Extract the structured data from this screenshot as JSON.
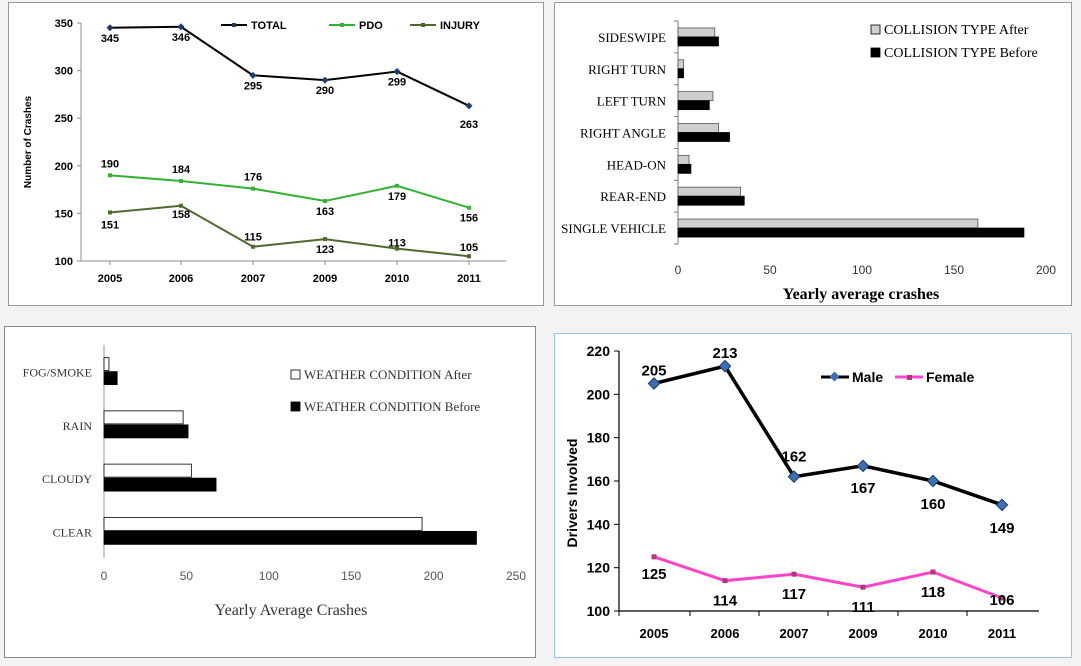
{
  "chart_data": [
    {
      "type": "line",
      "categories": [
        "2005",
        "2006",
        "2007",
        "2009",
        "2010",
        "2011"
      ],
      "series": [
        {
          "name": "TOTAL",
          "color": "#000000",
          "values": [
            345,
            346,
            295,
            290,
            299,
            263
          ]
        },
        {
          "name": "PDO",
          "color": "#33b233",
          "values": [
            190,
            184,
            176,
            163,
            179,
            156
          ]
        },
        {
          "name": "INJURY",
          "color": "#4e6b2e",
          "values": [
            151,
            158,
            115,
            123,
            113,
            105
          ]
        }
      ],
      "ylabel": "Number of Crashes",
      "ylim": [
        100,
        350
      ],
      "yticks": [
        100,
        150,
        200,
        250,
        300,
        350
      ],
      "legend": "top",
      "grid": false
    },
    {
      "type": "bar",
      "orientation": "horizontal",
      "categories": [
        "SIDESWIPE",
        "RIGHT TURN",
        "LEFT TURN",
        "RIGHT ANGLE",
        "HEAD-ON",
        "REAR-END",
        "SINGLE VEHICLE"
      ],
      "series": [
        {
          "name": "COLLISION TYPE After",
          "color": "#cfcfcf",
          "values": [
            20,
            3,
            19,
            22,
            6,
            34,
            163
          ]
        },
        {
          "name": "COLLISION TYPE Before",
          "color": "#000000",
          "values": [
            22,
            3,
            17,
            28,
            7,
            36,
            188
          ]
        }
      ],
      "xlabel": "Yearly average crashes",
      "xlim": [
        0,
        200
      ],
      "xticks": [
        0,
        50,
        100,
        150,
        200
      ],
      "legend": "top-right",
      "grid": false
    },
    {
      "type": "bar",
      "orientation": "horizontal",
      "categories": [
        "FOG/SMOKE",
        "RAIN",
        "CLOUDY",
        "CLEAR"
      ],
      "series": [
        {
          "name": "WEATHER CONDITION After",
          "color": "#ffffff",
          "values": [
            3,
            48,
            53,
            193
          ]
        },
        {
          "name": "WEATHER CONDITION Before",
          "color": "#000000",
          "values": [
            8,
            51,
            68,
            226
          ]
        }
      ],
      "xlabel": "Yearly Average Crashes",
      "xlim": [
        0,
        250
      ],
      "xticks": [
        0,
        50,
        100,
        150,
        200,
        250
      ],
      "legend": "top-right",
      "grid": false
    },
    {
      "type": "line",
      "categories": [
        "2005",
        "2006",
        "2007",
        "2009",
        "2010",
        "2011"
      ],
      "series": [
        {
          "name": "Male",
          "color": "#000000",
          "values": [
            205,
            213,
            162,
            167,
            160,
            149
          ]
        },
        {
          "name": "Female",
          "color": "#ff44cc",
          "values": [
            125,
            114,
            117,
            111,
            118,
            106
          ]
        }
      ],
      "ylabel": "Drivers Involved",
      "ylim": [
        100,
        220
      ],
      "yticks": [
        100,
        120,
        140,
        160,
        180,
        200,
        220
      ],
      "legend": "top",
      "grid": false
    }
  ]
}
